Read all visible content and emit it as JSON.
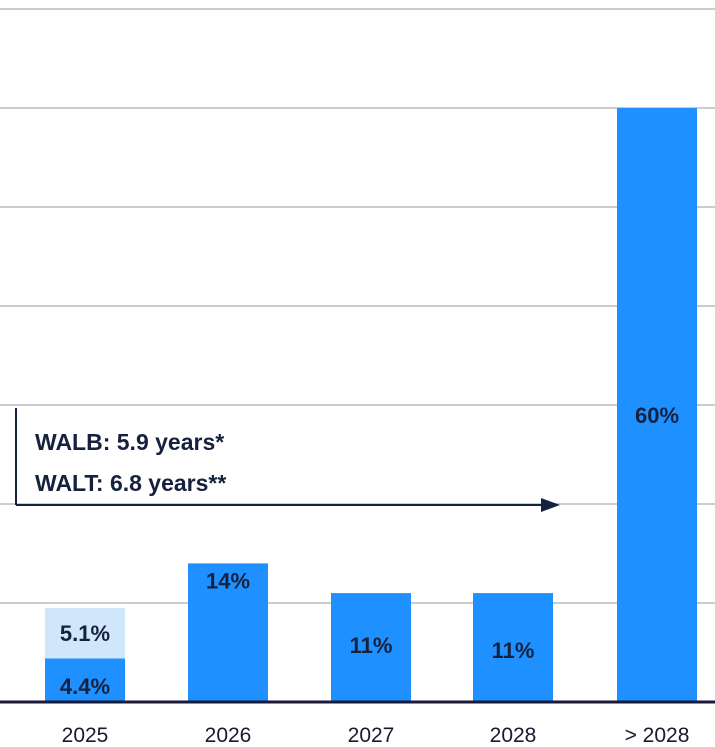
{
  "chart_data": {
    "type": "bar",
    "stacked": true,
    "categories": [
      "2025",
      "2026",
      "2027",
      "2028",
      "> 2028"
    ],
    "series": [
      {
        "values": [
          4.4,
          14,
          11,
          11,
          60
        ],
        "labels": [
          "4.4%",
          "14%",
          "11%",
          "11%",
          "60%"
        ],
        "color": "#1e90ff"
      },
      {
        "values": [
          5.1,
          0,
          0,
          0,
          0
        ],
        "labels": [
          "5.1%",
          "",
          "",
          "",
          ""
        ],
        "color": "#cfe6fb"
      }
    ],
    "ylim": [
      0,
      70
    ],
    "grid": true,
    "annotations": {
      "walb": "WALB: 5.9 years*",
      "walt": "WALT: 6.8 years**"
    }
  },
  "colors": {
    "bar": "#1e90ff",
    "bar_light": "#cfe6fb",
    "grid": "#cccccc",
    "axis": "#1a1a3a",
    "text": "#16213e"
  }
}
